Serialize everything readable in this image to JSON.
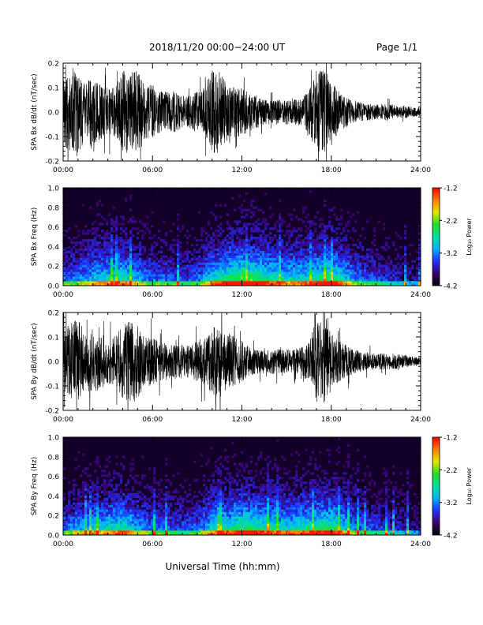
{
  "header": {
    "title": "2018/11/20  00:00−24:00 UT",
    "page": "Page 1/1"
  },
  "footer": {
    "xlabel": "Universal Time (hh:mm)"
  },
  "colorbar": {
    "label": "Log₁₀ Power",
    "range": [
      -4.2,
      -1.2
    ],
    "tick_labels": [
      "-1.2",
      "-2.2",
      "-3.2",
      "-4.2"
    ],
    "colors": [
      "#000000",
      "#3a006a",
      "#1f2fff",
      "#00b4ff",
      "#00e0a0",
      "#22dd22",
      "#e6e600",
      "#ff7a00",
      "#ff0000"
    ]
  },
  "chart_data": [
    {
      "type": "line",
      "title": "",
      "ylabel": "SPA Bx dB/dt (nT/sec)",
      "xlabel": "",
      "x_range_hours": [
        0,
        24
      ],
      "ylim": [
        -0.2,
        0.2
      ],
      "x_tick_labels": [
        "00:00",
        "06:00",
        "12:00",
        "18:00",
        "24:00"
      ],
      "y_tick_labels": [
        "0.2",
        "0.1",
        "0.0",
        "-0.1",
        "-0.2"
      ],
      "series": [
        {
          "amplitude_envelope": {
            "hours": [
              0,
              0.5,
              1,
              1.5,
              2,
              2.5,
              3,
              3.5,
              4,
              4.5,
              5,
              5.5,
              6,
              6.5,
              7,
              7.5,
              8,
              8.5,
              9,
              9.5,
              10,
              10.5,
              11,
              11.5,
              12,
              12.5,
              13,
              13.5,
              14,
              14.5,
              15,
              15.5,
              16,
              16.5,
              17,
              17.5,
              18,
              18.5,
              19,
              19.5,
              20,
              20.5,
              21,
              21.5,
              22,
              22.5,
              23,
              23.5,
              24
            ],
            "amplitude": [
              0.16,
              0.2,
              0.2,
              0.13,
              0.2,
              0.13,
              0.12,
              0.12,
              0.2,
              0.2,
              0.2,
              0.13,
              0.13,
              0.1,
              0.1,
              0.1,
              0.08,
              0.08,
              0.1,
              0.12,
              0.2,
              0.2,
              0.13,
              0.12,
              0.12,
              0.09,
              0.08,
              0.06,
              0.06,
              0.06,
              0.06,
              0.06,
              0.07,
              0.1,
              0.2,
              0.2,
              0.15,
              0.1,
              0.07,
              0.05,
              0.05,
              0.04,
              0.04,
              0.04,
              0.04,
              0.03,
              0.03,
              0.025,
              0.02
            ]
          }
        }
      ]
    },
    {
      "type": "heatmap",
      "title": "",
      "ylabel": "SPA Bx Freq (Hz)",
      "xlabel": "",
      "x_range_hours": [
        0,
        24
      ],
      "ylim": [
        0,
        1.0
      ],
      "x_tick_labels": [
        "00:00",
        "06:00",
        "12:00",
        "18:00",
        "24:00"
      ],
      "y_tick_labels": [
        "1.0",
        "0.8",
        "0.6",
        "0.4",
        "0.2",
        "0.0"
      ],
      "z_range": [
        -4.2,
        -1.2
      ],
      "activity_by_hour": [
        0.35,
        0.4,
        0.5,
        0.55,
        0.6,
        0.45,
        0.35,
        0.35,
        0.3,
        0.35,
        0.55,
        0.65,
        0.75,
        0.7,
        0.6,
        0.55,
        0.55,
        0.6,
        0.7,
        0.5,
        0.35,
        0.3,
        0.25,
        0.2,
        0.15
      ]
    },
    {
      "type": "line",
      "title": "",
      "ylabel": "SPA By dB/dt (nT/sec)",
      "xlabel": "",
      "x_range_hours": [
        0,
        24
      ],
      "ylim": [
        -0.2,
        0.2
      ],
      "x_tick_labels": [
        "00:00",
        "06:00",
        "12:00",
        "18:00",
        "24:00"
      ],
      "y_tick_labels": [
        "0.2",
        "0.1",
        "0.0",
        "-0.1",
        "-0.2"
      ],
      "series": [
        {
          "amplitude_envelope": {
            "hours": [
              0,
              0.5,
              1,
              1.5,
              2,
              2.5,
              3,
              3.5,
              4,
              4.5,
              5,
              5.5,
              6,
              6.5,
              7,
              7.5,
              8,
              8.5,
              9,
              9.5,
              10,
              10.5,
              11,
              11.5,
              12,
              12.5,
              13,
              13.5,
              14,
              14.5,
              15,
              15.5,
              16,
              16.5,
              17,
              17.5,
              18,
              18.5,
              19,
              19.5,
              20,
              20.5,
              21,
              21.5,
              22,
              22.5,
              23,
              23.5,
              24
            ],
            "amplitude": [
              0.15,
              0.2,
              0.2,
              0.14,
              0.16,
              0.13,
              0.12,
              0.12,
              0.18,
              0.2,
              0.18,
              0.12,
              0.12,
              0.09,
              0.09,
              0.09,
              0.08,
              0.08,
              0.1,
              0.12,
              0.16,
              0.18,
              0.14,
              0.12,
              0.1,
              0.07,
              0.06,
              0.05,
              0.06,
              0.06,
              0.06,
              0.06,
              0.07,
              0.1,
              0.2,
              0.2,
              0.14,
              0.1,
              0.08,
              0.06,
              0.05,
              0.045,
              0.04,
              0.04,
              0.04,
              0.035,
              0.03,
              0.025,
              0.02
            ]
          }
        }
      ]
    },
    {
      "type": "heatmap",
      "title": "",
      "ylabel": "SPA By Freq (Hz)",
      "xlabel": "",
      "x_range_hours": [
        0,
        24
      ],
      "ylim": [
        0,
        1.0
      ],
      "x_tick_labels": [
        "00:00",
        "06:00",
        "12:00",
        "18:00",
        "24:00"
      ],
      "y_tick_labels": [
        "1.0",
        "0.8",
        "0.6",
        "0.4",
        "0.2",
        "0.0"
      ],
      "z_range": [
        -4.2,
        -1.2
      ],
      "activity_by_hour": [
        0.35,
        0.45,
        0.5,
        0.55,
        0.6,
        0.45,
        0.35,
        0.35,
        0.3,
        0.35,
        0.55,
        0.6,
        0.7,
        0.65,
        0.6,
        0.55,
        0.6,
        0.65,
        0.7,
        0.5,
        0.35,
        0.3,
        0.25,
        0.2,
        0.15
      ]
    }
  ]
}
